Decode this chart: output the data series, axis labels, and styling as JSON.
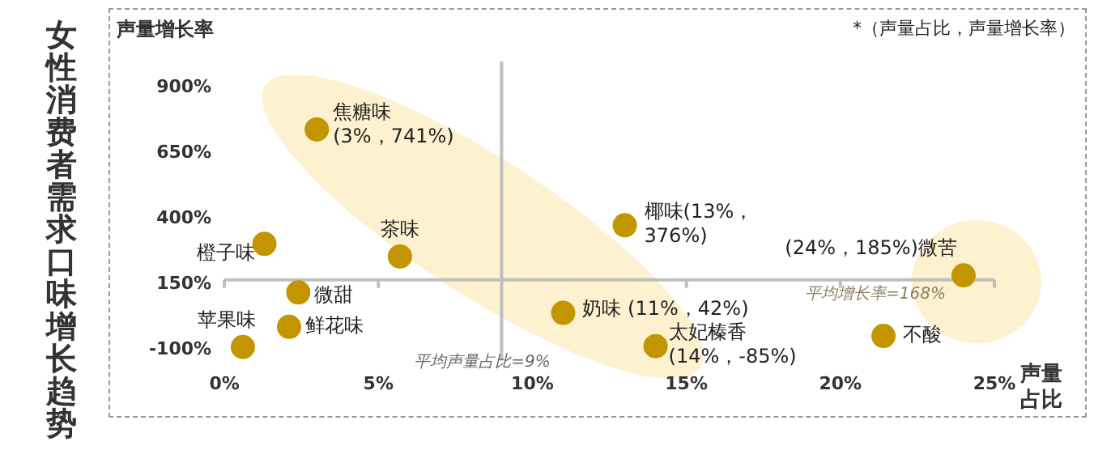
{
  "chart_data": {
    "type": "scatter",
    "title": "女性消费者需求口味增长趋势",
    "xlabel": "声量占比",
    "ylabel": "声量增长率",
    "xlim": [
      0,
      25
    ],
    "ylim": [
      -140,
      1000
    ],
    "xticks": [
      {
        "value": 0,
        "label": "0%"
      },
      {
        "value": 5,
        "label": "5%"
      },
      {
        "value": 10,
        "label": "10%"
      },
      {
        "value": 15,
        "label": "15%"
      },
      {
        "value": 20,
        "label": "20%"
      },
      {
        "value": 25,
        "label": "25%"
      }
    ],
    "yticks": [
      {
        "value": -100,
        "label": "-100%"
      },
      {
        "value": 150,
        "label": "150%"
      },
      {
        "value": 400,
        "label": "400%"
      },
      {
        "value": 650,
        "label": "650%"
      },
      {
        "value": 900,
        "label": "900%"
      }
    ],
    "series": [
      {
        "color": "#c39500",
        "x": [
          3,
          13,
          24,
          11,
          14,
          21.4,
          1.3,
          5.7,
          2.4,
          2.1,
          0.6
        ],
        "values": [
          741,
          376,
          185,
          42,
          -85,
          -46,
          305,
          257,
          120,
          -11,
          -88
        ]
      }
    ],
    "marker": "circle",
    "grid": false,
    "ref_lines": [
      {
        "axis": "x",
        "value": 9,
        "label": "平均声量占比=9%",
        "color": "#bfbfbf"
      },
      {
        "axis": "y",
        "value": 168,
        "label": "平均增长率=168%",
        "color": "#bfbfbf"
      }
    ],
    "annotations": [
      {
        "text": "焦糖味\n(3%，741%)",
        "x": 3,
        "y": 741
      },
      {
        "text": "椰味(13%，\n376%)",
        "x": 13,
        "y": 376
      },
      {
        "text": "(24%，185%)微苦",
        "x": 24,
        "y": 185
      },
      {
        "text": "奶味 (11%，42%)",
        "x": 11,
        "y": 42
      },
      {
        "text": "太妃榛香\n(14%，-85%)",
        "x": 14,
        "y": -85
      },
      {
        "text": "不酸",
        "x": 21.4,
        "y": -46
      },
      {
        "text": "橙子味",
        "x": 1.3,
        "y": 305
      },
      {
        "text": "茶味",
        "x": 5.7,
        "y": 257
      },
      {
        "text": "微甜",
        "x": 2.4,
        "y": 120
      },
      {
        "text": "鲜花味",
        "x": 2.1,
        "y": -11
      },
      {
        "text": "苹果味",
        "x": 0.6,
        "y": -88
      },
      "*（声量占比，声量增长率）"
    ]
  }
}
